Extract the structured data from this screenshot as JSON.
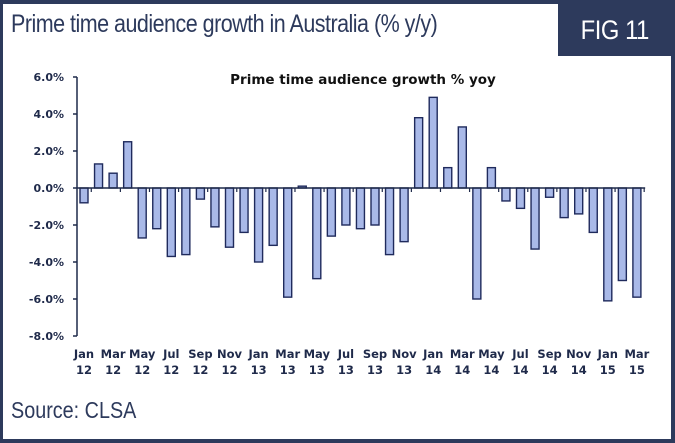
{
  "header": {
    "title": "Prime time audience growth in Australia (% y/y)",
    "figure_label": "FIG 11"
  },
  "footer": {
    "source": "Source: CLSA"
  },
  "colors": {
    "frame": "#2d3a5c",
    "bar_fill": "#a9b9e8",
    "bar_stroke": "#1f2a5c",
    "axis": "#1f2a4a"
  },
  "chart_data": {
    "type": "bar",
    "title": "Prime time audience growth % yoy",
    "xlabel": "",
    "ylabel": "",
    "ylim": [
      -8.0,
      6.0
    ],
    "yticks": [
      6.0,
      4.0,
      2.0,
      0.0,
      -2.0,
      -4.0,
      -6.0,
      -8.0
    ],
    "ytick_labels": [
      "6.0%",
      "4.0%",
      "2.0%",
      "0.0%",
      "-2.0%",
      "-4.0%",
      "-6.0%",
      "-8.0%"
    ],
    "grid": false,
    "legend": "none",
    "categories": [
      "Jan 12",
      "Feb 12",
      "Mar 12",
      "Apr 12",
      "May 12",
      "Jun 12",
      "Jul 12",
      "Aug 12",
      "Sep 12",
      "Oct 12",
      "Nov 12",
      "Dec 12",
      "Jan 13",
      "Feb 13",
      "Mar 13",
      "Apr 13",
      "May 13",
      "Jun 13",
      "Jul 13",
      "Aug 13",
      "Sep 13",
      "Oct 13",
      "Nov 13",
      "Dec 13",
      "Jan 14",
      "Feb 14",
      "Mar 14",
      "Apr 14",
      "May 14",
      "Jun 14",
      "Jul 14",
      "Aug 14",
      "Sep 14",
      "Oct 14",
      "Nov 14",
      "Dec 14",
      "Jan 15",
      "Feb 15",
      "Mar 15"
    ],
    "xtick_labels": [
      {
        "month": "Jan",
        "year": "12",
        "index": 0
      },
      {
        "month": "Mar",
        "year": "12",
        "index": 2
      },
      {
        "month": "May",
        "year": "12",
        "index": 4
      },
      {
        "month": "Jul",
        "year": "12",
        "index": 6
      },
      {
        "month": "Sep",
        "year": "12",
        "index": 8
      },
      {
        "month": "Nov",
        "year": "12",
        "index": 10
      },
      {
        "month": "Jan",
        "year": "13",
        "index": 12
      },
      {
        "month": "Mar",
        "year": "13",
        "index": 14
      },
      {
        "month": "May",
        "year": "13",
        "index": 16
      },
      {
        "month": "Jul",
        "year": "13",
        "index": 18
      },
      {
        "month": "Sep",
        "year": "13",
        "index": 20
      },
      {
        "month": "Nov",
        "year": "13",
        "index": 22
      },
      {
        "month": "Jan",
        "year": "14",
        "index": 24
      },
      {
        "month": "Mar",
        "year": "14",
        "index": 26
      },
      {
        "month": "May",
        "year": "14",
        "index": 28
      },
      {
        "month": "Jul",
        "year": "14",
        "index": 30
      },
      {
        "month": "Sep",
        "year": "14",
        "index": 32
      },
      {
        "month": "Nov",
        "year": "14",
        "index": 34
      },
      {
        "month": "Jan",
        "year": "15",
        "index": 36
      },
      {
        "month": "Mar",
        "year": "15",
        "index": 38
      }
    ],
    "series": [
      {
        "name": "Prime time audience growth % yoy",
        "values": [
          -0.8,
          1.3,
          0.8,
          2.5,
          -2.7,
          -2.2,
          -3.7,
          -3.6,
          -0.6,
          -2.1,
          -3.2,
          -2.4,
          -4.0,
          -3.1,
          -5.9,
          0.1,
          -4.9,
          -2.6,
          -2.0,
          -2.2,
          -2.0,
          -3.6,
          -2.9,
          3.8,
          4.9,
          1.1,
          3.3,
          -6.0,
          1.1,
          -0.7,
          -1.1,
          -3.3,
          -0.5,
          -1.6,
          -1.4,
          -2.4,
          -6.1,
          -5.0,
          -5.9
        ]
      }
    ]
  }
}
